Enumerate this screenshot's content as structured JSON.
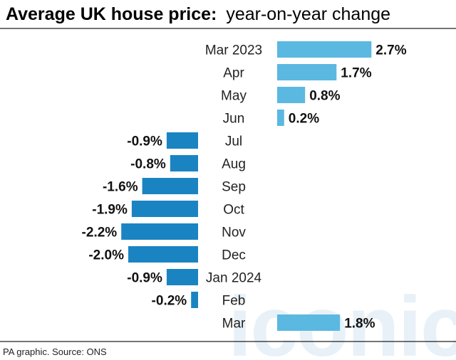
{
  "chart_data": {
    "type": "bar",
    "orientation": "horizontal",
    "title_bold": "Average UK house price:",
    "title_rest": "year-on-year change",
    "categories": [
      "Mar 2023",
      "Apr",
      "May",
      "Jun",
      "Jul",
      "Aug",
      "Sep",
      "Oct",
      "Nov",
      "Dec",
      "Jan 2024",
      "Feb",
      "Mar"
    ],
    "values": [
      2.7,
      1.7,
      0.8,
      0.2,
      -0.9,
      -0.8,
      -1.6,
      -1.9,
      -2.2,
      -2.0,
      -0.9,
      -0.2,
      1.8
    ],
    "value_labels": [
      "2.7%",
      "1.7%",
      "0.8%",
      "0.2%",
      "-0.9%",
      "-0.8%",
      "-1.6%",
      "-1.9%",
      "-2.2%",
      "-2.0%",
      "-0.9%",
      "-0.2%",
      "1.8%"
    ],
    "positive_color": "#5bb8e0",
    "negative_color": "#1a84c2",
    "source": "PA graphic. Source: ONS",
    "watermark": "iconic"
  }
}
